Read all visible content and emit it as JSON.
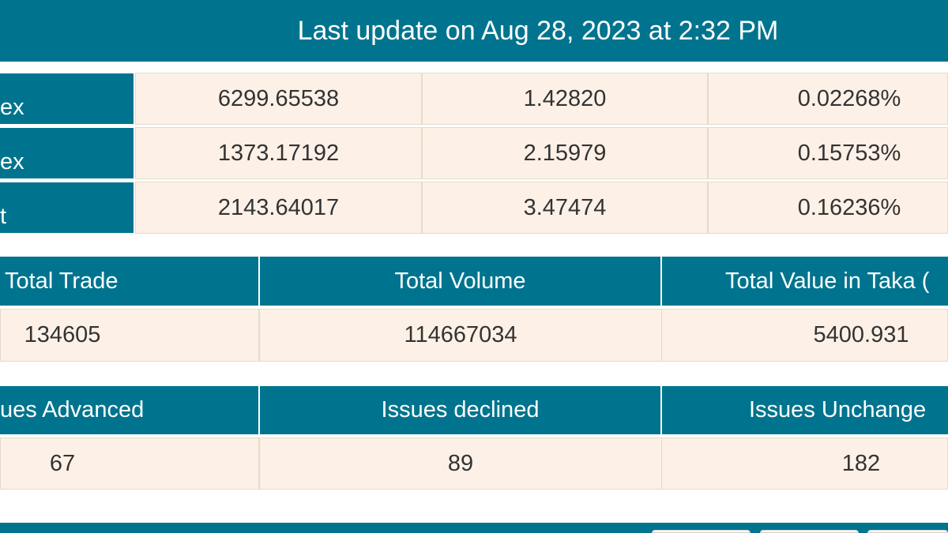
{
  "header": {
    "title": "Last update on Aug 28, 2023 at 2:32 PM"
  },
  "indices": [
    {
      "label": "ex",
      "value": "6299.65538",
      "change": "1.42820",
      "percent": "0.02268%"
    },
    {
      "label": "ex",
      "value": "1373.17192",
      "change": "2.15979",
      "percent": "0.15753%"
    },
    {
      "label": "t",
      "value": "2143.64017",
      "change": "3.47474",
      "percent": "0.16236%"
    }
  ],
  "trade": {
    "headers": [
      "Total Trade",
      "Total Volume",
      "Total Value in Taka ("
    ],
    "values": [
      "134605",
      "114667034",
      "5400.931"
    ]
  },
  "issues": {
    "headers": [
      "ues Advanced",
      "Issues declined",
      "Issues Unchange"
    ],
    "values": [
      "67",
      "89",
      "182"
    ]
  },
  "colors": {
    "primary": "#00748e",
    "cell_bg": "#fdf1e7"
  }
}
